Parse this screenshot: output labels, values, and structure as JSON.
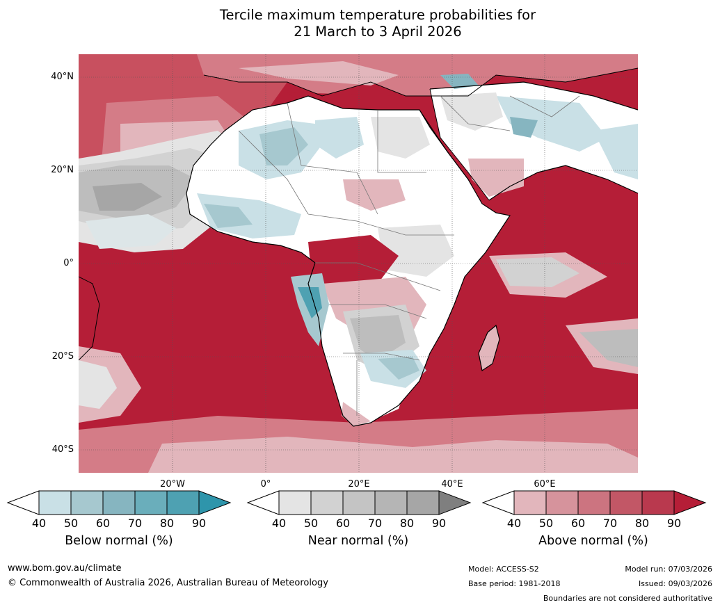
{
  "title_line1": "Tercile maximum temperature probabilities for",
  "title_line2": "21 March to 3 April 2026",
  "map": {
    "lat_labels": [
      "40°N",
      "20°N",
      "0°",
      "20°S",
      "40°S"
    ],
    "lon_labels": [
      "20°W",
      "0°",
      "20°E",
      "40°E",
      "60°E"
    ],
    "colors": {
      "ocean_warm": "#b51e37",
      "warm2": "#c8505f",
      "warm3": "#d47c87",
      "warm4": "#e2b6bc",
      "near1": "#e4e4e4",
      "near2": "#d2d2d2",
      "near3": "#bdbdbd",
      "near4": "#a6a6a6",
      "cool1": "#c9e0e6",
      "cool2": "#a6c8cf",
      "cool3": "#86b5c0",
      "cool4": "#4ea1b2"
    }
  },
  "colorbars": [
    {
      "label": "Below normal (%)",
      "ticks": [
        "40",
        "50",
        "60",
        "70",
        "80",
        "90"
      ],
      "colors": [
        "#ffffff",
        "#c9e0e6",
        "#a6c8cf",
        "#86b5c0",
        "#6aaebb",
        "#4ea1b2",
        "#2e95ab"
      ]
    },
    {
      "label": "Near normal (%)",
      "ticks": [
        "40",
        "50",
        "60",
        "70",
        "80",
        "90"
      ],
      "colors": [
        "#ffffff",
        "#e4e4e4",
        "#d2d2d2",
        "#c4c4c4",
        "#b5b5b5",
        "#a6a6a6",
        "#7f7f7f"
      ]
    },
    {
      "label": "Above normal (%)",
      "ticks": [
        "40",
        "50",
        "60",
        "70",
        "80",
        "90"
      ],
      "colors": [
        "#ffffff",
        "#e2b6bc",
        "#d6939c",
        "#cc7480",
        "#c25766",
        "#b9394e",
        "#b51e37"
      ]
    }
  ],
  "footer": {
    "website": "www.bom.gov.au/climate",
    "copyright": "© Commonwealth of Australia 2026, Australian Bureau of Meteorology",
    "model": "Model: ACCESS-S2",
    "base_period": "Base period: 1981-2018",
    "model_run": "Model run: 07/03/2026",
    "issued": "Issued: 09/03/2026",
    "disclaimer": "Boundaries are not considered authoritative"
  }
}
